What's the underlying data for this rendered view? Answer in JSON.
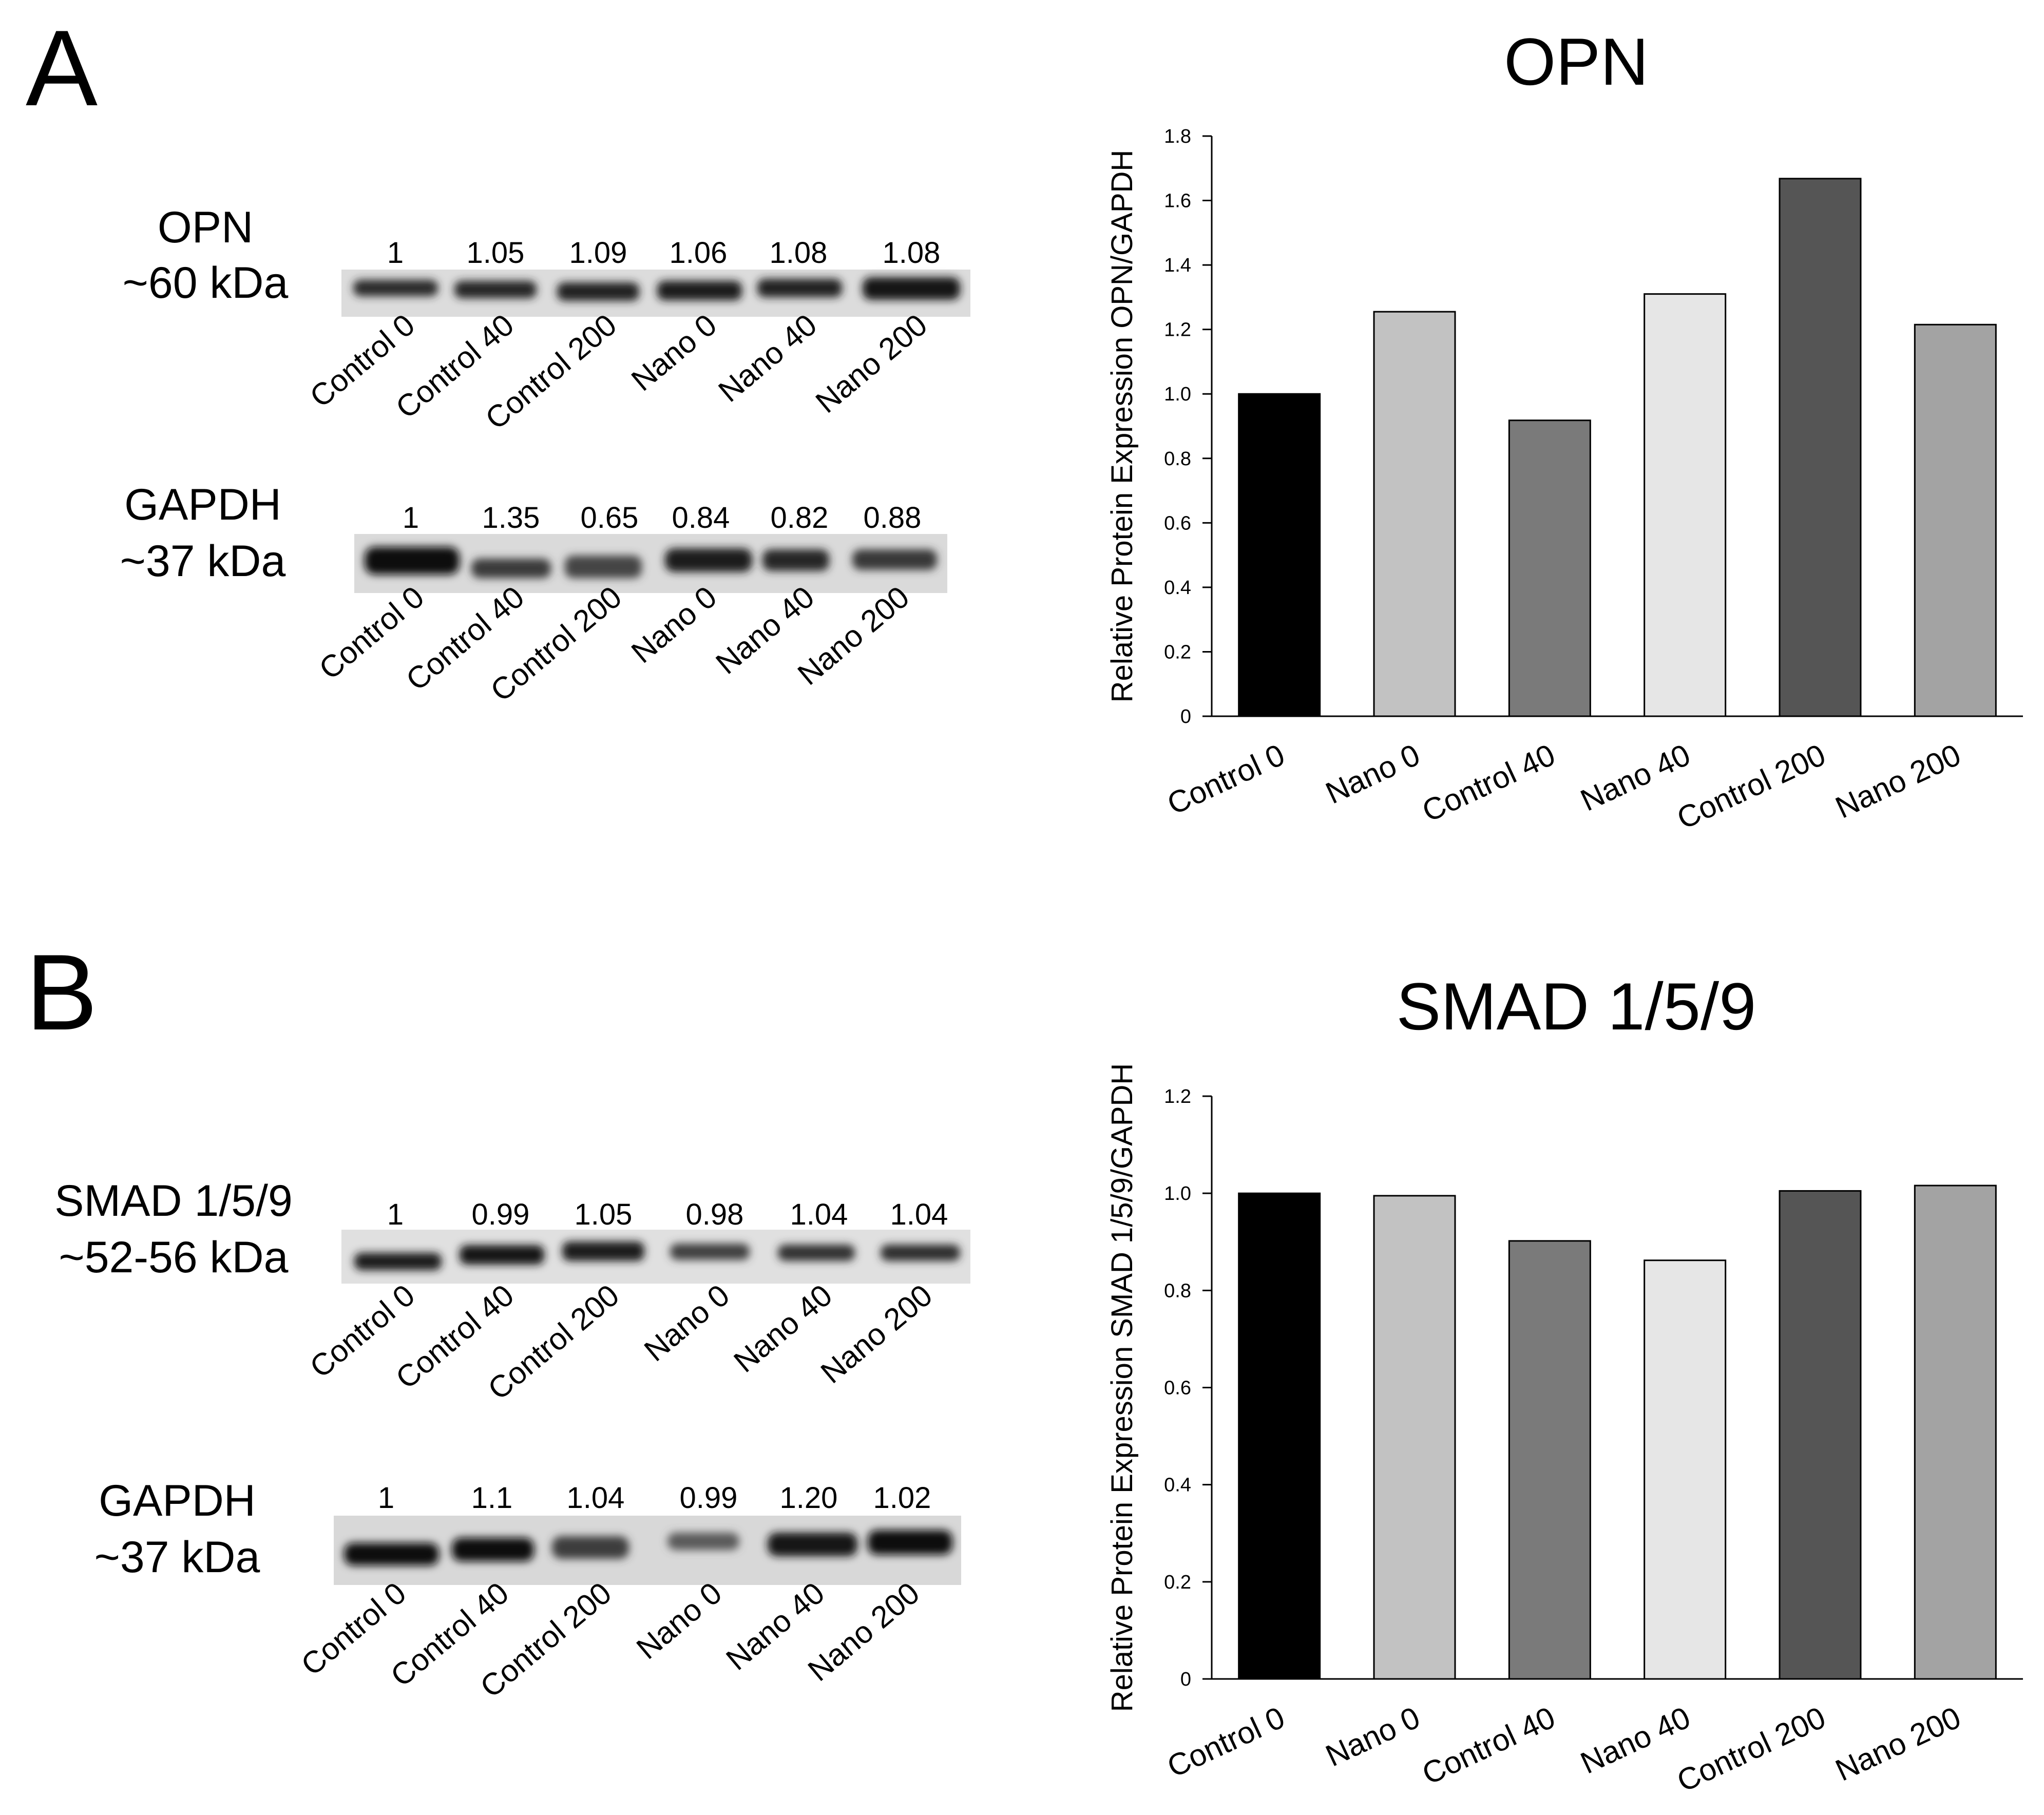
{
  "panels": [
    {
      "letter": "A",
      "blots": [
        {
          "protein": "OPN",
          "size": "~60 kDa",
          "values": [
            "1",
            "1.05",
            "1.09",
            "1.06",
            "1.08",
            "1.08"
          ],
          "lanes": [
            "Control 0",
            "Control 40",
            "Control 200",
            "Nano 0",
            "Nano 40",
            "Nano 200"
          ]
        },
        {
          "protein": "GAPDH",
          "size": "~37 kDa",
          "values": [
            "1",
            "1.35",
            "0.65",
            "0.84",
            "0.82",
            "0.88"
          ],
          "lanes": [
            "Control 0",
            "Control 40",
            "Control 200",
            "Nano 0",
            "Nano 40",
            "Nano 200"
          ]
        }
      ]
    },
    {
      "letter": "B",
      "blots": [
        {
          "protein": "SMAD 1/5/9",
          "size": "~52-56 kDa",
          "values": [
            "1",
            "0.99",
            "1.05",
            "0.98",
            "1.04",
            "1.04"
          ],
          "lanes": [
            "Control 0",
            "Control 40",
            "Control 200",
            "Nano 0",
            "Nano 40",
            "Nano 200"
          ]
        },
        {
          "protein": "GAPDH",
          "size": "~37 kDa",
          "values": [
            "1",
            "1.1",
            "1.04",
            "0.99",
            "1.20",
            "1.02"
          ],
          "lanes": [
            "Control 0",
            "Control 40",
            "Control 200",
            "Nano 0",
            "Nano 40",
            "Nano 200"
          ]
        }
      ]
    }
  ],
  "chart_data": [
    {
      "type": "bar",
      "title": "OPN",
      "xlabel": "",
      "ylabel": "Relative Protein Expression OPN/GAPDH",
      "categories": [
        "Control 0",
        "Nano 0",
        "Control 40",
        "Nano 40",
        "Control 200",
        "Nano 200"
      ],
      "values": [
        1.0,
        1.255,
        0.918,
        1.31,
        1.668,
        1.215
      ],
      "colors": [
        "#000000",
        "#c2c2c2",
        "#7a7a7a",
        "#e6e6e6",
        "#555555",
        "#a3a3a3"
      ],
      "ylim": [
        0,
        1.8
      ],
      "yticks": [
        0,
        0.2,
        0.4,
        0.6,
        0.8,
        1.0,
        1.2,
        1.4,
        1.6,
        1.8
      ],
      "ytick_labels": [
        "0",
        "0.2",
        "0.4",
        "0.6",
        "0.8",
        "1.0",
        "1.2",
        "1.4",
        "1.6",
        "1.8"
      ]
    },
    {
      "type": "bar",
      "title": "SMAD 1/5/9",
      "xlabel": "",
      "ylabel": "Relative Protein Expression SMAD 1/5/9/GAPDH",
      "categories": [
        "Control 0",
        "Nano 0",
        "Control 40",
        "Nano 40",
        "Control 200",
        "Nano 200"
      ],
      "values": [
        1.0,
        0.995,
        0.902,
        0.862,
        1.005,
        1.016
      ],
      "colors": [
        "#000000",
        "#c2c2c2",
        "#7a7a7a",
        "#e6e6e6",
        "#555555",
        "#a3a3a3"
      ],
      "ylim": [
        0,
        1.2
      ],
      "yticks": [
        0,
        0.2,
        0.4,
        0.6,
        0.8,
        1.0,
        1.2
      ],
      "ytick_labels": [
        "0",
        "0.2",
        "0.4",
        "0.6",
        "0.8",
        "1.0",
        "1.2"
      ]
    }
  ]
}
